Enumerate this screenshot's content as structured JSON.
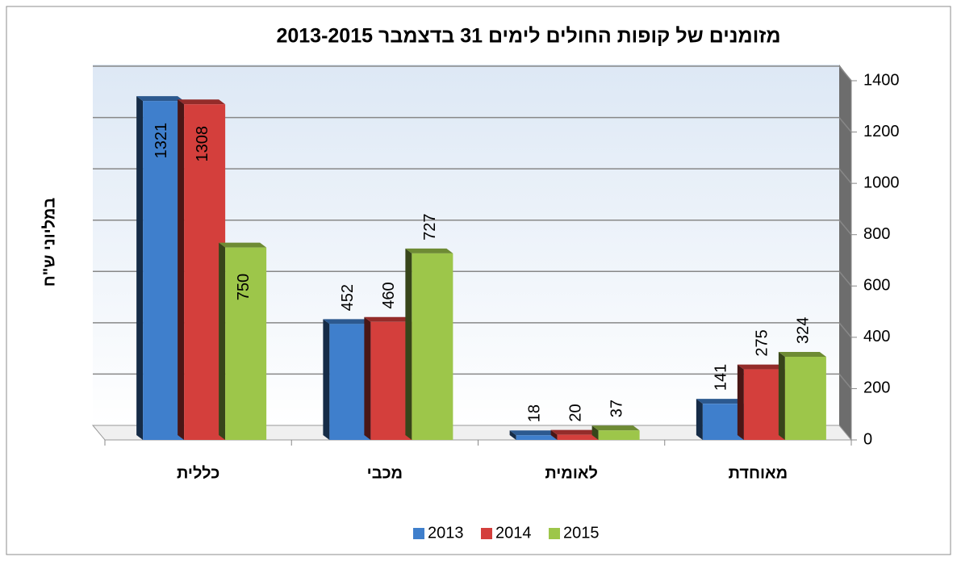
{
  "chart_data": {
    "type": "bar",
    "title": "מזומנים של קופות החולים לימים 31 בדצמבר 2013-2015",
    "y_axis_label": "במליוני ש\"ח",
    "categories": [
      "כללית",
      "מכבי",
      "לאומית",
      "מאוחדת"
    ],
    "series": [
      {
        "name": "2013",
        "color": "#3f7fcc",
        "values": [
          1321,
          452,
          18,
          141
        ]
      },
      {
        "name": "2014",
        "color": "#d43f3c",
        "values": [
          1308,
          460,
          20,
          275
        ]
      },
      {
        "name": "2015",
        "color": "#9dc64a",
        "values": [
          750,
          727,
          37,
          324
        ]
      }
    ],
    "ylim": [
      0,
      1400
    ],
    "yticks": [
      0,
      200,
      400,
      600,
      800,
      1000,
      1200,
      1400
    ],
    "y_axis_side": "right",
    "grid": true,
    "legend": "bottom"
  }
}
